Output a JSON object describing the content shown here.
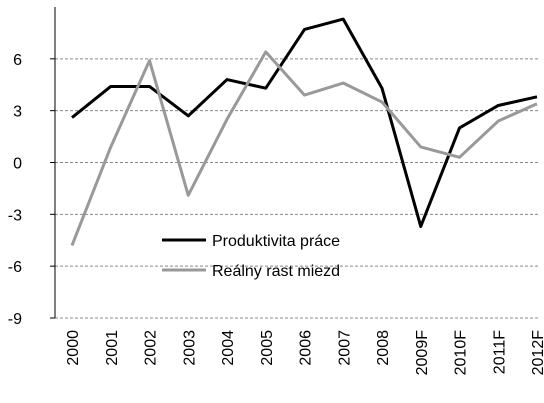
{
  "chart_data": {
    "type": "line",
    "categories": [
      "2000",
      "2001",
      "2002",
      "2003",
      "2004",
      "2005",
      "2006",
      "2007",
      "2008",
      "2009F",
      "2010F",
      "2011F",
      "2012F"
    ],
    "series": [
      {
        "name": "Produktivita práce",
        "color": "#000000",
        "values": [
          2.6,
          4.4,
          4.4,
          2.7,
          4.8,
          4.3,
          7.7,
          8.3,
          4.3,
          -3.7,
          2.0,
          3.3,
          3.8
        ]
      },
      {
        "name": "Reálny rast miezd",
        "color": "#999999",
        "values": [
          -4.8,
          0.9,
          5.9,
          -1.9,
          2.5,
          6.4,
          3.9,
          4.6,
          3.5,
          0.9,
          0.3,
          2.4,
          3.4
        ]
      }
    ],
    "ylim": [
      -9,
      9
    ],
    "yticks": [
      -9,
      -6,
      -3,
      0,
      3,
      6
    ],
    "grid": true,
    "legend": "lower-left"
  }
}
